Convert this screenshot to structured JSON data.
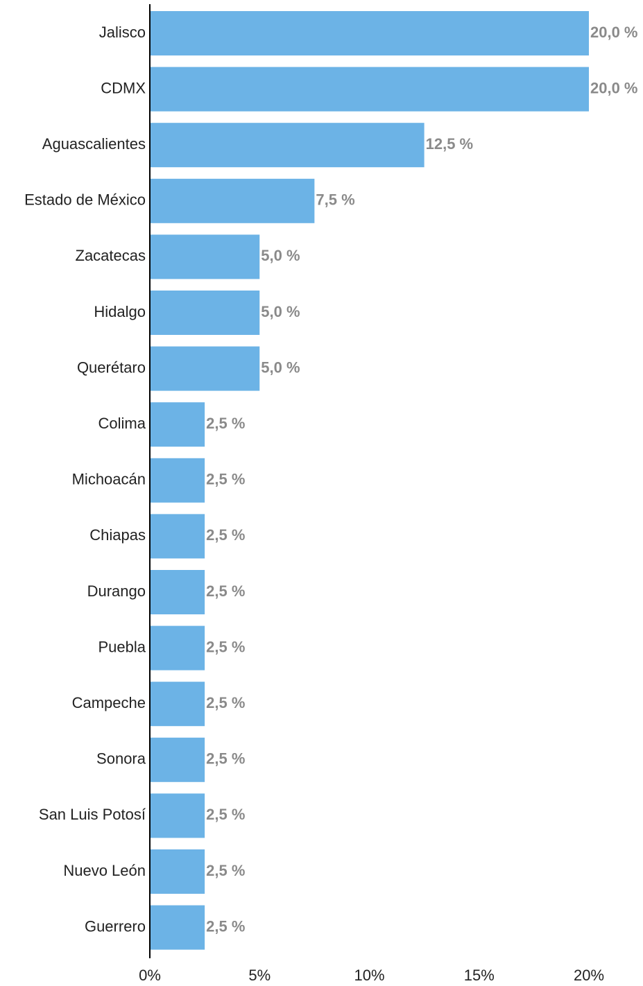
{
  "chart_data": {
    "type": "hbar",
    "categories": [
      "Jalisco",
      "CDMX",
      "Aguascalientes",
      "Estado de México",
      "Zacatecas",
      "Hidalgo",
      "Querétaro",
      "Colima",
      "Michoacán",
      "Chiapas",
      "Durango",
      "Puebla",
      "Campeche",
      "Sonora",
      "San Luis Potosí",
      "Nuevo León",
      "Guerrero"
    ],
    "values": [
      20.0,
      20.0,
      12.5,
      7.5,
      5.0,
      5.0,
      5.0,
      2.5,
      2.5,
      2.5,
      2.5,
      2.5,
      2.5,
      2.5,
      2.5,
      2.5,
      2.5
    ],
    "value_labels": [
      "20,0 %",
      "20,0 %",
      "12,5 %",
      "7,5 %",
      "5,0 %",
      "5,0 %",
      "5,0 %",
      "2,5 %",
      "2,5 %",
      "2,5 %",
      "2,5 %",
      "2,5 %",
      "2,5 %",
      "2,5 %",
      "2,5 %",
      "2,5 %",
      "2,5 %"
    ],
    "color": "#6cb3e6",
    "xlim": [
      0,
      20
    ],
    "xticks": [
      {
        "value": 0,
        "label": "0%"
      },
      {
        "value": 5,
        "label": "5%"
      },
      {
        "value": 10,
        "label": "10%"
      },
      {
        "value": 15,
        "label": "15%"
      },
      {
        "value": 20,
        "label": "20%"
      }
    ]
  }
}
